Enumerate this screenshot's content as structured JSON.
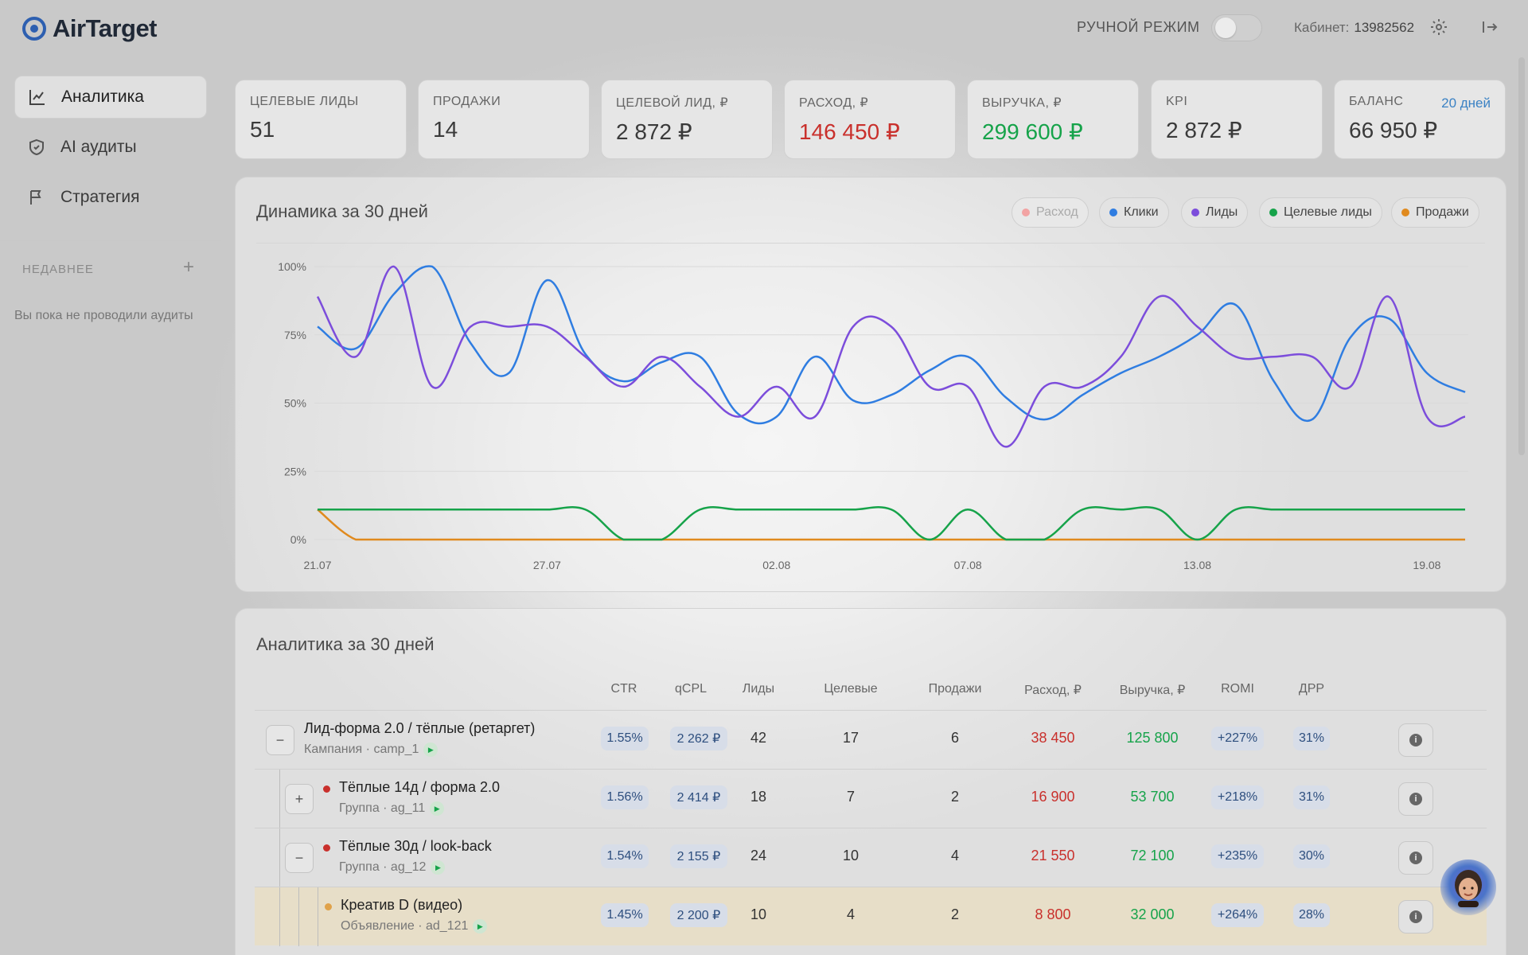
{
  "app": {
    "name": "AirTarget"
  },
  "header": {
    "manual_mode": "РУЧНОЙ РЕЖИМ",
    "cabinet_label": "Кабинет:",
    "cabinet_id": "13982562"
  },
  "sidebar": {
    "items": [
      {
        "label": "Аналитика",
        "icon": "chart-icon",
        "active": true
      },
      {
        "label": "AI аудиты",
        "icon": "shield-icon",
        "active": false
      },
      {
        "label": "Стратегия",
        "icon": "flag-icon",
        "active": false
      }
    ],
    "recent_title": "НЕДАВНЕЕ",
    "recent_empty": "Вы пока не проводили аудиты"
  },
  "kpis": [
    {
      "label": "ЦЕЛЕВЫЕ ЛИДЫ",
      "value": "51"
    },
    {
      "label": "ПРОДАЖИ",
      "value": "14"
    },
    {
      "label": "ЦЕЛЕВОЙ ЛИД, ₽",
      "value": "2 872 ₽"
    },
    {
      "label": "РАСХОД, ₽",
      "value": "146 450 ₽"
    },
    {
      "label": "ВЫРУЧКА, ₽",
      "value": "299 600 ₽"
    },
    {
      "label": "KPI",
      "value": "2 872 ₽"
    },
    {
      "label": "БАЛАНС",
      "value": "66 950 ₽",
      "extra": "20 дней"
    }
  ],
  "dynamics": {
    "title": "Динамика за 30 дней",
    "legend": [
      {
        "label": "Расход",
        "color": "#f2a3a3",
        "active": false
      },
      {
        "label": "Клики",
        "color": "#2f7de1",
        "active": true
      },
      {
        "label": "Лиды",
        "color": "#7c4ddb",
        "active": true
      },
      {
        "label": "Целевые лиды",
        "color": "#16a34a",
        "active": true
      },
      {
        "label": "Продажи",
        "color": "#e08a1e",
        "active": true
      }
    ]
  },
  "chart_data": {
    "type": "line",
    "title": "Динамика за 30 дней",
    "xlabel": "",
    "ylabel": "",
    "y_ticks": [
      "0%",
      "25%",
      "50%",
      "75%",
      "100%"
    ],
    "ylim": [
      0,
      100
    ],
    "x_ticks": [
      {
        "label": "21.07",
        "i": 0
      },
      {
        "label": "27.07",
        "i": 6
      },
      {
        "label": "02.08",
        "i": 12
      },
      {
        "label": "07.08",
        "i": 17
      },
      {
        "label": "13.08",
        "i": 23
      },
      {
        "label": "19.08",
        "i": 29
      }
    ],
    "x": [
      "21.07",
      "22.07",
      "23.07",
      "24.07",
      "25.07",
      "26.07",
      "27.07",
      "28.07",
      "29.07",
      "30.07",
      "31.07",
      "01.08",
      "02.08",
      "03.08",
      "04.08",
      "05.08",
      "06.08",
      "07.08",
      "08.08",
      "09.08",
      "10.08",
      "11.08",
      "12.08",
      "13.08",
      "14.08",
      "15.08",
      "16.08",
      "17.08",
      "18.08",
      "19.08",
      "20.08"
    ],
    "series": [
      {
        "name": "Клики",
        "color": "#2f7de1",
        "values": [
          78,
          70,
          90,
          100,
          72,
          61,
          95,
          68,
          58,
          65,
          67,
          46,
          45,
          67,
          51,
          53,
          62,
          67,
          52,
          44,
          53,
          61,
          67,
          75,
          86,
          58,
          44,
          74,
          81,
          61,
          54
        ]
      },
      {
        "name": "Лиды",
        "color": "#7c4ddb",
        "values": [
          89,
          67,
          100,
          56,
          78,
          78,
          78,
          67,
          56,
          67,
          56,
          45,
          56,
          45,
          78,
          78,
          56,
          56,
          34,
          56,
          56,
          67,
          89,
          78,
          67,
          67,
          67,
          56,
          89,
          45,
          45
        ]
      },
      {
        "name": "Целевые лиды",
        "color": "#16a34a",
        "values": [
          11,
          11,
          11,
          11,
          11,
          11,
          11,
          11,
          0,
          0,
          11,
          11,
          11,
          11,
          11,
          11,
          0,
          11,
          0,
          0,
          11,
          11,
          11,
          0,
          11,
          11,
          11,
          11,
          11,
          11,
          11
        ]
      },
      {
        "name": "Продажи",
        "color": "#e08a1e",
        "values": [
          11,
          0,
          0,
          0,
          0,
          0,
          0,
          0,
          0,
          0,
          0,
          0,
          0,
          0,
          0,
          0,
          0,
          0,
          0,
          0,
          0,
          0,
          0,
          0,
          0,
          0,
          0,
          0,
          0,
          0,
          0
        ]
      }
    ],
    "grid": true,
    "legend_position": "top-right"
  },
  "analytics": {
    "title": "Аналитика за 30 дней",
    "columns": [
      "CTR",
      "qCPL",
      "Лиды",
      "Целевые",
      "Продажи",
      "Расход, ₽",
      "Выручка, ₽",
      "ROMI",
      "ДРР"
    ],
    "rows": [
      {
        "name": "Лид-форма 2.0 / тёплые (ретаргет)",
        "sub": "Кампания · camp_1",
        "level": 0,
        "expand": "−",
        "bullet": "",
        "ctr": "1.55%",
        "qcpl": "2 262 ₽",
        "leads": "42",
        "target": "17",
        "sales": "6",
        "spend": "38 450",
        "revenue": "125 800",
        "romi": "+227%",
        "drr": "31%"
      },
      {
        "name": "Тёплые 14д / форма 2.0",
        "sub": "Группа · ag_11",
        "level": 1,
        "expand": "+",
        "bullet": "#c9302c",
        "ctr": "1.56%",
        "qcpl": "2 414 ₽",
        "leads": "18",
        "target": "7",
        "sales": "2",
        "spend": "16 900",
        "revenue": "53 700",
        "romi": "+218%",
        "drr": "31%"
      },
      {
        "name": "Тёплые 30д / look-back",
        "sub": "Группа · ag_12",
        "level": 1,
        "expand": "−",
        "bullet": "#c9302c",
        "ctr": "1.54%",
        "qcpl": "2 155 ₽",
        "leads": "24",
        "target": "10",
        "sales": "4",
        "spend": "21 550",
        "revenue": "72 100",
        "romi": "+235%",
        "drr": "30%"
      },
      {
        "name": "Креатив D (видео)",
        "sub": "Объявление · ad_121",
        "level": 2,
        "expand": "",
        "bullet": "#e0a24a",
        "ctr": "1.45%",
        "qcpl": "2 200 ₽",
        "leads": "10",
        "target": "4",
        "sales": "2",
        "spend": "8 800",
        "revenue": "32 000",
        "romi": "+264%",
        "drr": "28%"
      }
    ]
  }
}
